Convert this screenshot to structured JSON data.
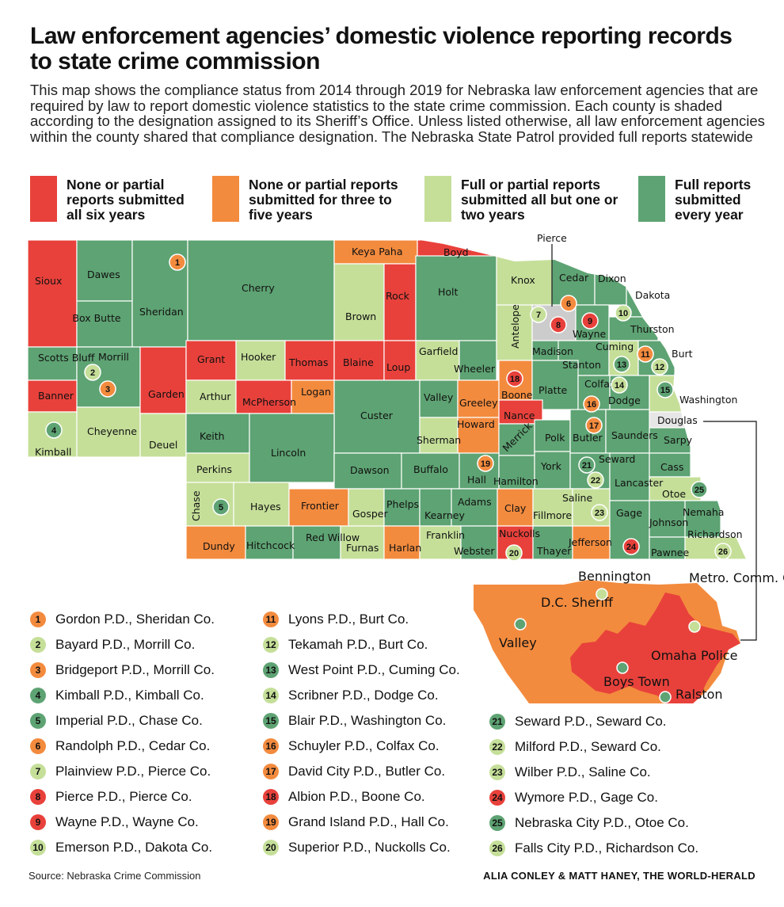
{
  "title": "Law enforcement agencies’ domestic violence reporting records to state crime commission",
  "subtitle": "This map shows the compliance status from 2014 through 2019 for Nebraska law enforcement agencies that are required by law to report domestic violence statistics to the state crime commission. Each county is shaded according to the designation assigned to its Sheriff’s Office. Unless listed otherwise, all law enforcement agencies within the county shared that compliance designation. The Nebraska State Patrol provided full reports statewide",
  "colors": {
    "none_all": "#e8413b",
    "none_3to5": "#f38b3e",
    "partial_1or2": "#c5df99",
    "full": "#5ea373",
    "douglas": "#e6e6e6"
  },
  "legend": [
    {
      "key": "none_all",
      "label": "None or partial reports submitted all six years"
    },
    {
      "key": "none_3to5",
      "label": "None or partial reports submitted for three to five years"
    },
    {
      "key": "partial_1or2",
      "label": "Full or partial reports submitted all but one or two years"
    },
    {
      "key": "full",
      "label": "Full reports submitted every year"
    }
  ],
  "counties": [
    {
      "name": "Sioux",
      "status": "none_all"
    },
    {
      "name": "Dawes",
      "status": "full"
    },
    {
      "name": "Box Butte",
      "status": "full"
    },
    {
      "name": "Sheridan",
      "status": "full"
    },
    {
      "name": "Cherry",
      "status": "full"
    },
    {
      "name": "Keya Paha",
      "status": "none_3to5"
    },
    {
      "name": "Boyd",
      "status": "none_all"
    },
    {
      "name": "Brown",
      "status": "partial_1or2"
    },
    {
      "name": "Rock",
      "status": "none_all"
    },
    {
      "name": "Holt",
      "status": "full"
    },
    {
      "name": "Knox",
      "status": "partial_1or2"
    },
    {
      "name": "Cedar",
      "status": "full"
    },
    {
      "name": "Dixon",
      "status": "full"
    },
    {
      "name": "Dakota",
      "status": "full"
    },
    {
      "name": "Scotts Bluff",
      "status": "full"
    },
    {
      "name": "Morrill",
      "status": "full"
    },
    {
      "name": "Banner",
      "status": "none_all"
    },
    {
      "name": "Kimball",
      "status": "partial_1or2"
    },
    {
      "name": "Cheyenne",
      "status": "partial_1or2"
    },
    {
      "name": "Garden",
      "status": "none_all"
    },
    {
      "name": "Deuel",
      "status": "partial_1or2"
    },
    {
      "name": "Grant",
      "status": "none_all"
    },
    {
      "name": "Hooker",
      "status": "partial_1or2"
    },
    {
      "name": "Thomas",
      "status": "none_all"
    },
    {
      "name": "Blaine",
      "status": "none_all"
    },
    {
      "name": "Loup",
      "status": "none_all"
    },
    {
      "name": "Garfield",
      "status": "partial_1or2"
    },
    {
      "name": "Wheeler",
      "status": "full"
    },
    {
      "name": "Antelope",
      "status": "partial_1or2"
    },
    {
      "name": "Madison",
      "status": "full"
    },
    {
      "name": "Stanton",
      "status": "full"
    },
    {
      "name": "Wayne",
      "status": "full"
    },
    {
      "name": "Thurston",
      "status": "full"
    },
    {
      "name": "Cuming",
      "status": "partial_1or2"
    },
    {
      "name": "Burt",
      "status": "full"
    },
    {
      "name": "Arthur",
      "status": "partial_1or2"
    },
    {
      "name": "McPherson",
      "status": "none_all"
    },
    {
      "name": "Logan",
      "status": "none_3to5"
    },
    {
      "name": "Custer",
      "status": "full"
    },
    {
      "name": "Valley",
      "status": "full"
    },
    {
      "name": "Greeley",
      "status": "none_3to5"
    },
    {
      "name": "Boone",
      "status": "none_3to5"
    },
    {
      "name": "Platte",
      "status": "full"
    },
    {
      "name": "Colfax",
      "status": "full"
    },
    {
      "name": "Dodge",
      "status": "full"
    },
    {
      "name": "Washington",
      "status": "partial_1or2"
    },
    {
      "name": "Douglas",
      "status": "douglas"
    },
    {
      "name": "Keith",
      "status": "full"
    },
    {
      "name": "Perkins",
      "status": "partial_1or2"
    },
    {
      "name": "Lincoln",
      "status": "full"
    },
    {
      "name": "Sherman",
      "status": "partial_1or2"
    },
    {
      "name": "Howard",
      "status": "none_3to5"
    },
    {
      "name": "Nance",
      "status": "none_all"
    },
    {
      "name": "Merrick",
      "status": "full"
    },
    {
      "name": "Polk",
      "status": "full"
    },
    {
      "name": "Butler",
      "status": "full"
    },
    {
      "name": "Saunders",
      "status": "full"
    },
    {
      "name": "Sarpy",
      "status": "full"
    },
    {
      "name": "Dawson",
      "status": "full"
    },
    {
      "name": "Buffalo",
      "status": "full"
    },
    {
      "name": "Hall",
      "status": "full"
    },
    {
      "name": "Hamilton",
      "status": "full"
    },
    {
      "name": "York",
      "status": "full"
    },
    {
      "name": "Seward",
      "status": "full"
    },
    {
      "name": "Lancaster",
      "status": "full"
    },
    {
      "name": "Cass",
      "status": "full"
    },
    {
      "name": "Otoe",
      "status": "partial_1or2"
    },
    {
      "name": "Chase",
      "status": "partial_1or2"
    },
    {
      "name": "Hayes",
      "status": "partial_1or2"
    },
    {
      "name": "Frontier",
      "status": "none_3to5"
    },
    {
      "name": "Gosper",
      "status": "partial_1or2"
    },
    {
      "name": "Phelps",
      "status": "full"
    },
    {
      "name": "Kearney",
      "status": "full"
    },
    {
      "name": "Adams",
      "status": "full"
    },
    {
      "name": "Clay",
      "status": "none_3to5"
    },
    {
      "name": "Fillmore",
      "status": "partial_1or2"
    },
    {
      "name": "Saline",
      "status": "partial_1or2"
    },
    {
      "name": "Johnson",
      "status": "full"
    },
    {
      "name": "Nemaha",
      "status": "full"
    },
    {
      "name": "Dundy",
      "status": "none_3to5"
    },
    {
      "name": "Hitchcock",
      "status": "full"
    },
    {
      "name": "Red Willow",
      "status": "full"
    },
    {
      "name": "Furnas",
      "status": "partial_1or2"
    },
    {
      "name": "Harlan",
      "status": "none_3to5"
    },
    {
      "name": "Franklin",
      "status": "partial_1or2"
    },
    {
      "name": "Webster",
      "status": "full"
    },
    {
      "name": "Nuckolls",
      "status": "none_all"
    },
    {
      "name": "Thayer",
      "status": "full"
    },
    {
      "name": "Jefferson",
      "status": "none_3to5"
    },
    {
      "name": "Gage",
      "status": "full"
    },
    {
      "name": "Pawnee",
      "status": "full"
    },
    {
      "name": "Richardson",
      "status": "partial_1or2"
    }
  ],
  "map_callouts": {
    "pierce": "Pierce",
    "douglas": "Douglas"
  },
  "inset": {
    "labels": [
      "Bennington",
      "D.C. Sheriff",
      "Valley",
      "Metro. Comm. College",
      "Omaha Police",
      "Boys Town",
      "Ralston"
    ],
    "regions": [
      {
        "name": "Douglas County Sheriff",
        "status": "none_3to5"
      },
      {
        "name": "Omaha Police",
        "status": "none_all"
      },
      {
        "name": "Bennington",
        "status": "partial_1or2"
      },
      {
        "name": "Valley",
        "status": "full"
      },
      {
        "name": "Metro. Comm. College",
        "status": "partial_1or2"
      },
      {
        "name": "Boys Town",
        "status": "full"
      },
      {
        "name": "Ralston",
        "status": "full"
      }
    ]
  },
  "agencies": [
    {
      "num": "1",
      "name": "Gordon P.D., Sheridan Co.",
      "status": "none_3to5"
    },
    {
      "num": "2",
      "name": "Bayard P.D., Morrill Co.",
      "status": "partial_1or2"
    },
    {
      "num": "3",
      "name": "Bridgeport P.D., Morrill Co.",
      "status": "none_3to5"
    },
    {
      "num": "4",
      "name": "Kimball P.D., Kimball Co.",
      "status": "full"
    },
    {
      "num": "5",
      "name": "Imperial P.D., Chase Co.",
      "status": "full"
    },
    {
      "num": "6",
      "name": "Randolph P.D., Cedar Co.",
      "status": "none_3to5"
    },
    {
      "num": "7",
      "name": "Plainview P.D., Pierce Co.",
      "status": "partial_1or2"
    },
    {
      "num": "8",
      "name": "Pierce P.D., Pierce Co.",
      "status": "none_all"
    },
    {
      "num": "9",
      "name": "Wayne P.D., Wayne Co.",
      "status": "none_all"
    },
    {
      "num": "10",
      "name": "Emerson P.D., Dakota Co.",
      "status": "partial_1or2"
    },
    {
      "num": "11",
      "name": "Lyons P.D., Burt Co.",
      "status": "none_3to5"
    },
    {
      "num": "12",
      "name": "Tekamah P.D., Burt Co.",
      "status": "partial_1or2"
    },
    {
      "num": "13",
      "name": "West Point P.D., Cuming Co.",
      "status": "full"
    },
    {
      "num": "14",
      "name": "Scribner P.D., Dodge Co.",
      "status": "partial_1or2"
    },
    {
      "num": "15",
      "name": "Blair P.D., Washington Co.",
      "status": "full"
    },
    {
      "num": "16",
      "name": "Schuyler P.D., Colfax Co.",
      "status": "none_3to5"
    },
    {
      "num": "17",
      "name": "David City P.D., Butler Co.",
      "status": "none_3to5"
    },
    {
      "num": "18",
      "name": "Albion P.D., Boone Co.",
      "status": "none_all"
    },
    {
      "num": "19",
      "name": "Grand Island P.D., Hall Co.",
      "status": "none_3to5"
    },
    {
      "num": "20",
      "name": "Superior P.D., Nuckolls Co.",
      "status": "partial_1or2"
    },
    {
      "num": "21",
      "name": "Seward P.D., Seward Co.",
      "status": "full"
    },
    {
      "num": "22",
      "name": "Milford P.D., Seward Co.",
      "status": "partial_1or2"
    },
    {
      "num": "23",
      "name": "Wilber P.D., Saline Co.",
      "status": "partial_1or2"
    },
    {
      "num": "24",
      "name": "Wymore P.D., Gage Co.",
      "status": "none_all"
    },
    {
      "num": "25",
      "name": "Nebraska City P.D., Otoe Co.",
      "status": "full"
    },
    {
      "num": "26",
      "name": "Falls City P.D., Richardson Co.",
      "status": "partial_1or2"
    }
  ],
  "source": "Source: Nebraska Crime Commission",
  "credit": "ALIA CONLEY & MATT HANEY, THE WORLD-HERALD"
}
